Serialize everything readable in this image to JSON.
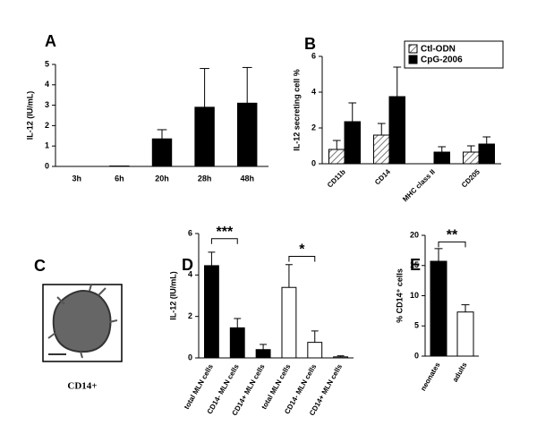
{
  "chart_data": [
    {
      "type": "bar",
      "title": "A",
      "y_label": "IL-12 (IU/mL)",
      "categories": [
        "3h",
        "6h",
        "20h",
        "28h",
        "48h"
      ],
      "values": [
        0,
        0.02,
        1.35,
        2.9,
        3.1
      ],
      "errors": [
        0,
        0,
        0.45,
        1.9,
        1.75
      ],
      "color": "#000000",
      "ylim": [
        0,
        5
      ],
      "yticks": [
        0,
        1,
        2,
        3,
        4,
        5
      ]
    },
    {
      "type": "bar",
      "title": "B",
      "y_label": "IL-12 secreting cell %",
      "categories": [
        "CD11b",
        "CD14",
        "MHC class II",
        "CD205"
      ],
      "series": [
        {
          "name": "Ctl-ODN",
          "color": "#888888",
          "hatch": true,
          "values": [
            0.8,
            1.6,
            0,
            0.65
          ],
          "errors": [
            0.5,
            0.65,
            0,
            0.35
          ]
        },
        {
          "name": "CpG-2006",
          "color": "#000000",
          "values": [
            2.35,
            3.75,
            0.65,
            1.1
          ],
          "errors": [
            1.05,
            1.65,
            0.3,
            0.4
          ]
        }
      ],
      "ylim": [
        0,
        6
      ],
      "yticks": [
        0,
        2,
        4,
        6
      ],
      "legend": "top-right"
    },
    {
      "type": "image",
      "title": "C",
      "caption": "CD14+"
    },
    {
      "type": "bar",
      "title": "D",
      "y_label": "IL-12 (IU/mL)",
      "categories": [
        "total MLN cells",
        "CD14- MLN cells",
        "CD14+ MLN cells",
        "total MLN cells",
        "CD14- MLN cells",
        "CD14+ MLN cells"
      ],
      "values": [
        4.45,
        1.45,
        0.4,
        3.4,
        0.75,
        0.05
      ],
      "errors": [
        0.65,
        0.45,
        0.25,
        1.1,
        0.55,
        0.05
      ],
      "colors": [
        "#000000",
        "#000000",
        "#000000",
        "#ffffff",
        "#ffffff",
        "#ffffff"
      ],
      "ylim": [
        0,
        6
      ],
      "yticks": [
        0,
        2,
        4,
        6
      ],
      "annotations": [
        "***",
        "*"
      ]
    },
    {
      "type": "bar",
      "title": "E",
      "y_label": "% CD14⁺ cells",
      "categories": [
        "neonates",
        "adults"
      ],
      "values": [
        15.7,
        7.3
      ],
      "errors": [
        2.1,
        1.2
      ],
      "colors": [
        "#000000",
        "#ffffff"
      ],
      "ylim": [
        0,
        20
      ],
      "yticks": [
        0,
        5,
        10,
        15,
        20
      ],
      "annotations": [
        "**"
      ]
    }
  ]
}
